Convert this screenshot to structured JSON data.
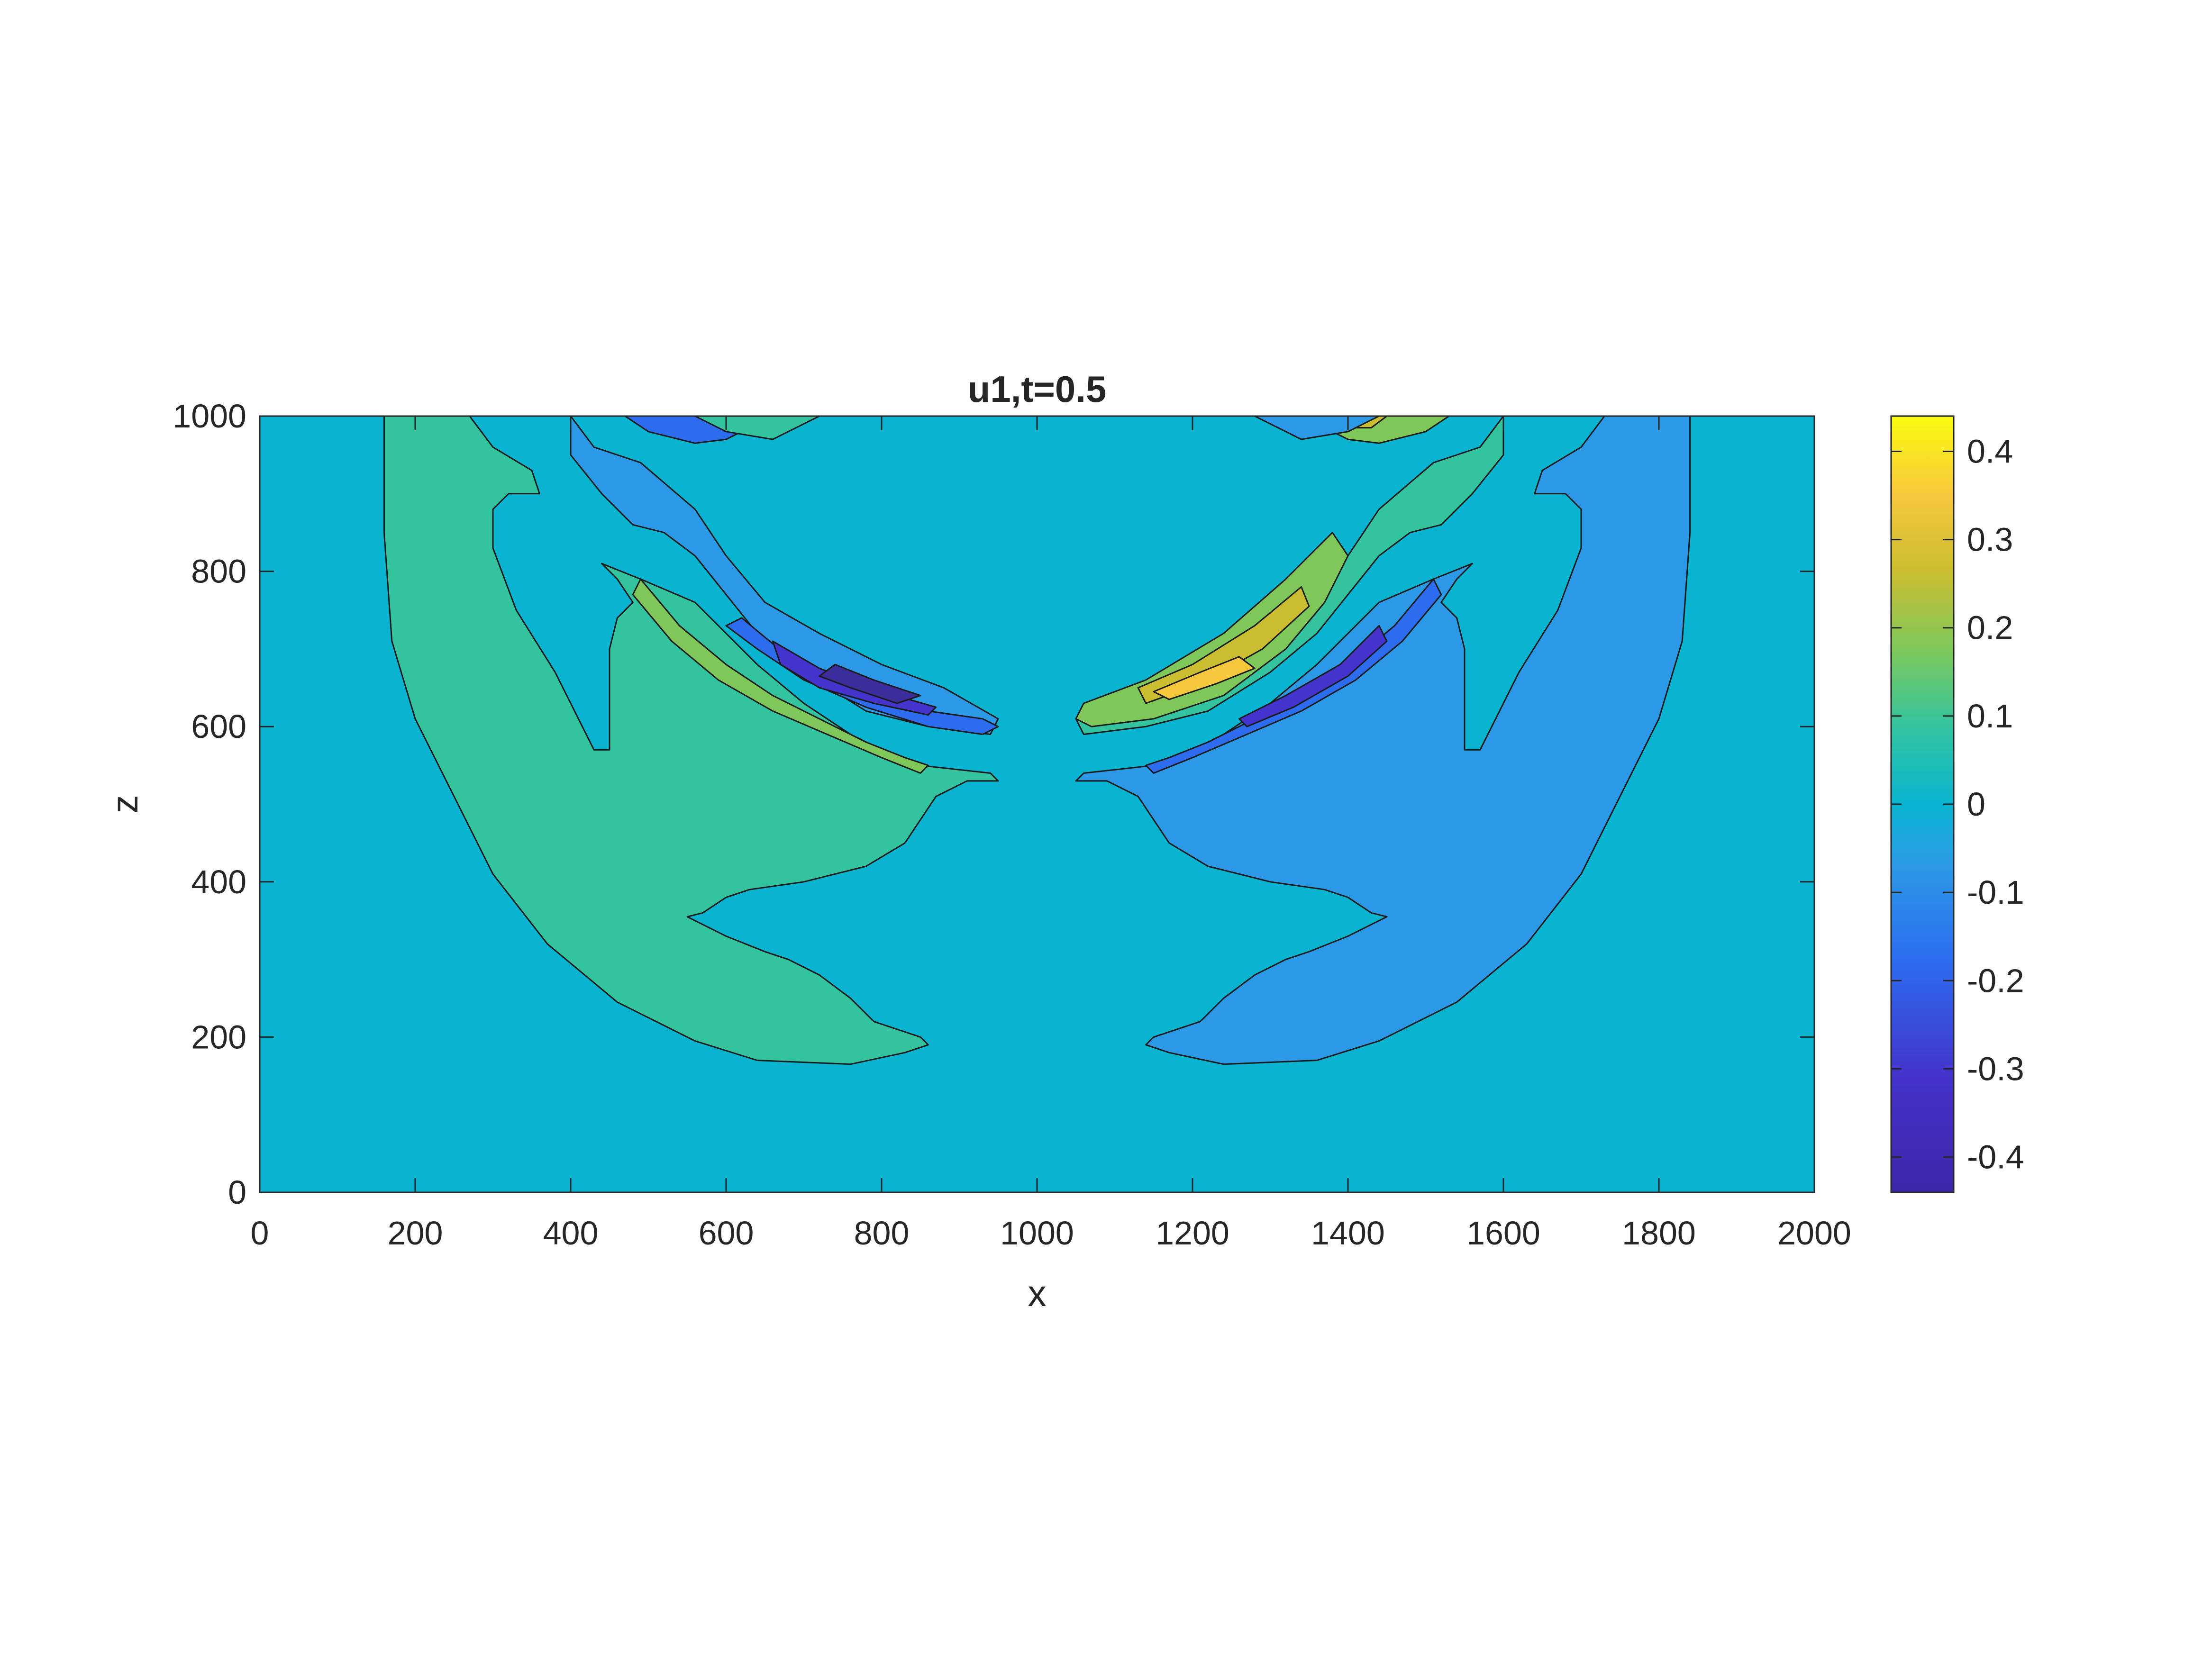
{
  "chart_data": {
    "type": "contour",
    "title": "u1,t=0.5",
    "xlabel": "x",
    "ylabel": "z",
    "xlim": [
      0,
      2000
    ],
    "ylim": [
      0,
      1000
    ],
    "xticks": [
      0,
      200,
      400,
      600,
      800,
      1000,
      1200,
      1400,
      1600,
      1800,
      2000
    ],
    "yticks": [
      0,
      200,
      400,
      600,
      800,
      1000
    ],
    "grid": false,
    "colorbar": {
      "location": "right",
      "limits": [
        -0.44,
        0.44
      ],
      "ticks": [
        0.4,
        0.3,
        0.2,
        0.1,
        0,
        -0.1,
        -0.2,
        -0.3,
        -0.4
      ],
      "tick_labels": [
        "0.4",
        "0.3",
        "0.2",
        "0.1",
        "0",
        "-0.1",
        "-0.2",
        "-0.3",
        "-0.4"
      ]
    },
    "levels": [
      {
        "value": -0.4,
        "color": "#3b2d9a"
      },
      {
        "value": -0.3,
        "color": "#4433cc"
      },
      {
        "value": -0.2,
        "color": "#2c6df0"
      },
      {
        "value": -0.1,
        "color": "#2c99e6"
      },
      {
        "value": 0.0,
        "color": "#08b4d0"
      },
      {
        "value": 0.1,
        "color": "#33c49f"
      },
      {
        "value": 0.2,
        "color": "#7ec85a"
      },
      {
        "value": 0.3,
        "color": "#cbbd30"
      },
      {
        "value": 0.4,
        "color": "#f7c83c"
      }
    ],
    "background_level": 0.0,
    "regions": [
      {
        "name": "left-arc-positive",
        "level": 0.1,
        "points": [
          [
            160,
            1000
          ],
          [
            270,
            1000
          ],
          [
            300,
            960
          ],
          [
            350,
            930
          ],
          [
            360,
            900
          ],
          [
            320,
            900
          ],
          [
            300,
            880
          ],
          [
            300,
            830
          ],
          [
            330,
            750
          ],
          [
            380,
            670
          ],
          [
            430,
            570
          ],
          [
            450,
            570
          ],
          [
            450,
            700
          ],
          [
            460,
            740
          ],
          [
            480,
            760
          ],
          [
            460,
            790
          ],
          [
            440,
            810
          ],
          [
            490,
            790
          ],
          [
            560,
            760
          ],
          [
            640,
            680
          ],
          [
            700,
            630
          ],
          [
            760,
            590
          ],
          [
            800,
            570
          ],
          [
            850,
            550
          ],
          [
            940,
            540
          ],
          [
            950,
            530
          ],
          [
            910,
            530
          ],
          [
            870,
            510
          ],
          [
            830,
            450
          ],
          [
            780,
            420
          ],
          [
            700,
            400
          ],
          [
            630,
            390
          ],
          [
            600,
            380
          ],
          [
            570,
            360
          ],
          [
            550,
            355
          ],
          [
            600,
            330
          ],
          [
            650,
            310
          ],
          [
            680,
            300
          ],
          [
            720,
            280
          ],
          [
            760,
            250
          ],
          [
            790,
            220
          ],
          [
            850,
            200
          ],
          [
            860,
            190
          ],
          [
            830,
            180
          ],
          [
            760,
            165
          ],
          [
            640,
            170
          ],
          [
            560,
            195
          ],
          [
            460,
            245
          ],
          [
            370,
            320
          ],
          [
            300,
            410
          ],
          [
            250,
            510
          ],
          [
            200,
            610
          ],
          [
            170,
            710
          ],
          [
            160,
            850
          ]
        ]
      },
      {
        "name": "right-arc-negative",
        "level": -0.1,
        "points": [
          [
            1840,
            1000
          ],
          [
            1730,
            1000
          ],
          [
            1700,
            960
          ],
          [
            1650,
            930
          ],
          [
            1640,
            900
          ],
          [
            1680,
            900
          ],
          [
            1700,
            880
          ],
          [
            1700,
            830
          ],
          [
            1670,
            750
          ],
          [
            1620,
            670
          ],
          [
            1570,
            570
          ],
          [
            1550,
            570
          ],
          [
            1550,
            700
          ],
          [
            1540,
            740
          ],
          [
            1520,
            760
          ],
          [
            1540,
            790
          ],
          [
            1560,
            810
          ],
          [
            1510,
            790
          ],
          [
            1440,
            760
          ],
          [
            1360,
            680
          ],
          [
            1300,
            630
          ],
          [
            1240,
            590
          ],
          [
            1200,
            570
          ],
          [
            1150,
            550
          ],
          [
            1060,
            540
          ],
          [
            1050,
            530
          ],
          [
            1090,
            530
          ],
          [
            1130,
            510
          ],
          [
            1170,
            450
          ],
          [
            1220,
            420
          ],
          [
            1300,
            400
          ],
          [
            1370,
            390
          ],
          [
            1400,
            380
          ],
          [
            1430,
            360
          ],
          [
            1450,
            355
          ],
          [
            1400,
            330
          ],
          [
            1350,
            310
          ],
          [
            1320,
            300
          ],
          [
            1280,
            280
          ],
          [
            1240,
            250
          ],
          [
            1210,
            220
          ],
          [
            1150,
            200
          ],
          [
            1140,
            190
          ],
          [
            1170,
            180
          ],
          [
            1240,
            165
          ],
          [
            1360,
            170
          ],
          [
            1440,
            195
          ],
          [
            1540,
            245
          ],
          [
            1630,
            320
          ],
          [
            1700,
            410
          ],
          [
            1750,
            510
          ],
          [
            1800,
            610
          ],
          [
            1830,
            710
          ],
          [
            1840,
            850
          ]
        ]
      },
      {
        "name": "left-upper-negative",
        "level": -0.1,
        "points": [
          [
            400,
            1000
          ],
          [
            430,
            960
          ],
          [
            490,
            940
          ],
          [
            560,
            880
          ],
          [
            600,
            820
          ],
          [
            650,
            760
          ],
          [
            720,
            720
          ],
          [
            800,
            680
          ],
          [
            880,
            650
          ],
          [
            950,
            610
          ],
          [
            940,
            590
          ],
          [
            860,
            600
          ],
          [
            780,
            620
          ],
          [
            700,
            670
          ],
          [
            640,
            720
          ],
          [
            600,
            770
          ],
          [
            560,
            820
          ],
          [
            520,
            850
          ],
          [
            480,
            860
          ],
          [
            440,
            900
          ],
          [
            400,
            950
          ]
        ]
      },
      {
        "name": "left-upper-negative-2",
        "level": -0.2,
        "points": [
          [
            470,
            1000
          ],
          [
            500,
            980
          ],
          [
            560,
            965
          ],
          [
            600,
            970
          ],
          [
            640,
            990
          ],
          [
            650,
            1000
          ]
        ]
      },
      {
        "name": "left-lobe-negative-2",
        "level": -0.2,
        "points": [
          [
            620,
            740
          ],
          [
            680,
            690
          ],
          [
            760,
            650
          ],
          [
            860,
            620
          ],
          [
            930,
            610
          ],
          [
            950,
            600
          ],
          [
            930,
            590
          ],
          [
            860,
            600
          ],
          [
            780,
            625
          ],
          [
            700,
            660
          ],
          [
            640,
            700
          ],
          [
            600,
            730
          ]
        ]
      },
      {
        "name": "left-lobe-negative-3",
        "level": -0.3,
        "points": [
          [
            660,
            710
          ],
          [
            720,
            675
          ],
          [
            800,
            645
          ],
          [
            870,
            625
          ],
          [
            860,
            615
          ],
          [
            790,
            630
          ],
          [
            720,
            650
          ],
          [
            670,
            680
          ]
        ]
      },
      {
        "name": "left-lobe-negative-4",
        "level": -0.4,
        "points": [
          [
            740,
            680
          ],
          [
            790,
            660
          ],
          [
            850,
            640
          ],
          [
            820,
            630
          ],
          [
            760,
            650
          ],
          [
            720,
            665
          ]
        ]
      },
      {
        "name": "left-lobe-positive-2",
        "level": 0.2,
        "points": [
          [
            490,
            790
          ],
          [
            540,
            730
          ],
          [
            600,
            680
          ],
          [
            660,
            640
          ],
          [
            720,
            610
          ],
          [
            780,
            580
          ],
          [
            830,
            560
          ],
          [
            860,
            550
          ],
          [
            850,
            540
          ],
          [
            800,
            560
          ],
          [
            730,
            590
          ],
          [
            660,
            620
          ],
          [
            590,
            660
          ],
          [
            530,
            710
          ],
          [
            480,
            770
          ]
        ]
      },
      {
        "name": "left-top-positive",
        "level": 0.1,
        "points": [
          [
            560,
            1000
          ],
          [
            600,
            980
          ],
          [
            660,
            970
          ],
          [
            720,
            1000
          ]
        ]
      },
      {
        "name": "right-upper-positive",
        "level": 0.1,
        "points": [
          [
            1600,
            1000
          ],
          [
            1570,
            960
          ],
          [
            1510,
            940
          ],
          [
            1440,
            880
          ],
          [
            1400,
            820
          ],
          [
            1350,
            760
          ],
          [
            1280,
            720
          ],
          [
            1200,
            680
          ],
          [
            1120,
            650
          ],
          [
            1050,
            610
          ],
          [
            1060,
            590
          ],
          [
            1140,
            600
          ],
          [
            1220,
            620
          ],
          [
            1300,
            670
          ],
          [
            1360,
            720
          ],
          [
            1400,
            770
          ],
          [
            1440,
            820
          ],
          [
            1480,
            850
          ],
          [
            1520,
            860
          ],
          [
            1560,
            900
          ],
          [
            1600,
            950
          ]
        ]
      },
      {
        "name": "right-upper-positive-2",
        "level": 0.2,
        "points": [
          [
            1530,
            1000
          ],
          [
            1500,
            980
          ],
          [
            1440,
            965
          ],
          [
            1400,
            970
          ],
          [
            1360,
            990
          ],
          [
            1350,
            1000
          ]
        ]
      },
      {
        "name": "right-upper-positive-3",
        "level": 0.3,
        "points": [
          [
            1450,
            1000
          ],
          [
            1430,
            985
          ],
          [
            1390,
            985
          ],
          [
            1370,
            1000
          ]
        ]
      },
      {
        "name": "right-lobe-positive-2",
        "level": 0.2,
        "points": [
          [
            1380,
            850
          ],
          [
            1320,
            790
          ],
          [
            1240,
            720
          ],
          [
            1140,
            660
          ],
          [
            1060,
            630
          ],
          [
            1050,
            610
          ],
          [
            1070,
            600
          ],
          [
            1150,
            610
          ],
          [
            1240,
            640
          ],
          [
            1320,
            700
          ],
          [
            1370,
            760
          ],
          [
            1400,
            820
          ]
        ]
      },
      {
        "name": "right-lobe-positive-3",
        "level": 0.3,
        "points": [
          [
            1340,
            780
          ],
          [
            1280,
            730
          ],
          [
            1200,
            680
          ],
          [
            1130,
            650
          ],
          [
            1140,
            630
          ],
          [
            1210,
            655
          ],
          [
            1290,
            700
          ],
          [
            1350,
            755
          ]
        ]
      },
      {
        "name": "right-lobe-positive-4",
        "level": 0.4,
        "points": [
          [
            1260,
            690
          ],
          [
            1210,
            670
          ],
          [
            1150,
            645
          ],
          [
            1170,
            635
          ],
          [
            1230,
            655
          ],
          [
            1280,
            675
          ]
        ]
      },
      {
        "name": "right-lobe-negative-2",
        "level": -0.2,
        "points": [
          [
            1510,
            790
          ],
          [
            1460,
            730
          ],
          [
            1400,
            680
          ],
          [
            1340,
            640
          ],
          [
            1280,
            610
          ],
          [
            1220,
            580
          ],
          [
            1170,
            560
          ],
          [
            1140,
            550
          ],
          [
            1150,
            540
          ],
          [
            1200,
            560
          ],
          [
            1270,
            590
          ],
          [
            1340,
            620
          ],
          [
            1410,
            660
          ],
          [
            1470,
            710
          ],
          [
            1520,
            770
          ]
        ]
      },
      {
        "name": "right-lobe-negative-3",
        "level": -0.3,
        "points": [
          [
            1440,
            730
          ],
          [
            1390,
            680
          ],
          [
            1320,
            640
          ],
          [
            1260,
            610
          ],
          [
            1270,
            600
          ],
          [
            1330,
            625
          ],
          [
            1400,
            665
          ],
          [
            1450,
            710
          ]
        ]
      },
      {
        "name": "right-top-negative",
        "level": -0.1,
        "points": [
          [
            1440,
            1000
          ],
          [
            1400,
            980
          ],
          [
            1340,
            970
          ],
          [
            1280,
            1000
          ]
        ]
      }
    ]
  }
}
